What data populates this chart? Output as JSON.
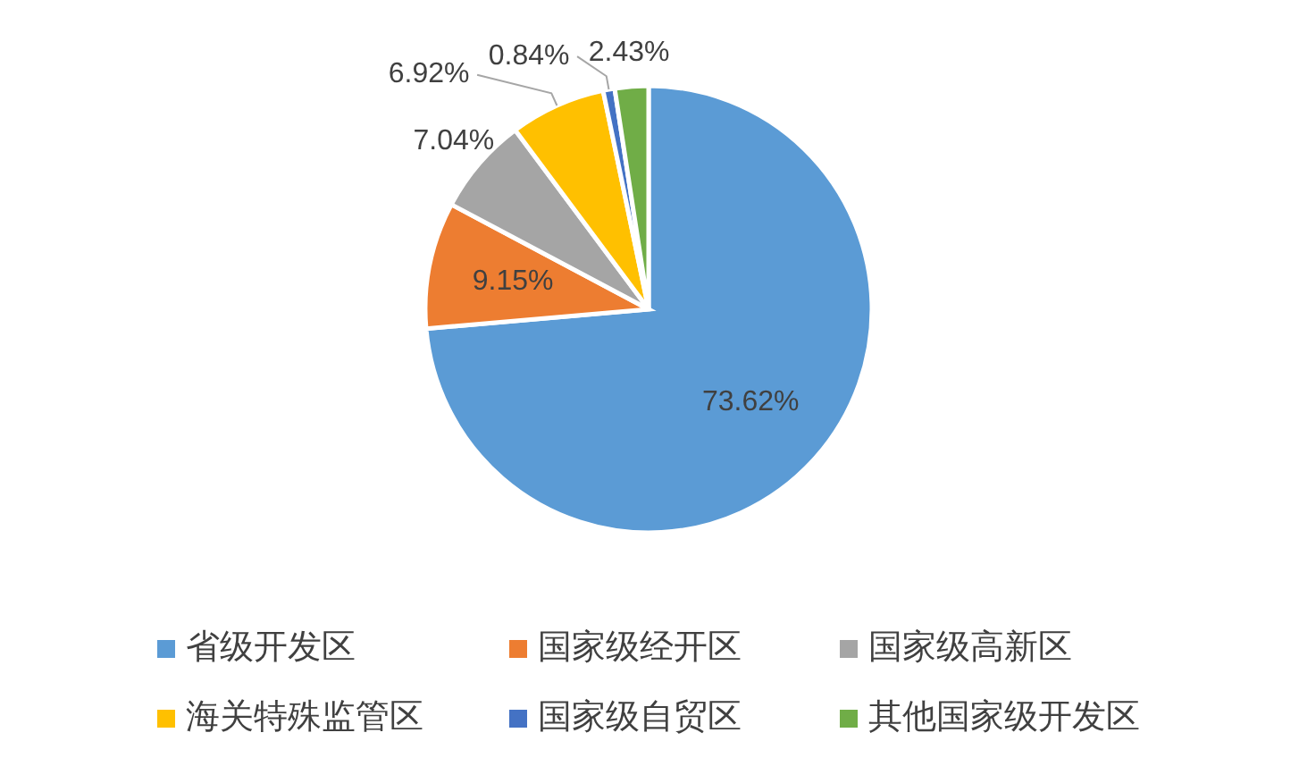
{
  "chart_data": {
    "type": "pie",
    "categories": [
      "省级开发区",
      "国家级经开区",
      "国家级高新区",
      "海关特殊监管区",
      "国家级自贸区",
      "其他国家级开发区"
    ],
    "values": [
      73.62,
      9.15,
      7.04,
      6.92,
      0.84,
      2.43
    ],
    "colors": [
      "#5b9bd5",
      "#ed7d31",
      "#a5a5a5",
      "#ffc000",
      "#4472c4",
      "#70ad47"
    ],
    "value_labels": [
      "73.62%",
      "9.15%",
      "7.04%",
      "6.92%",
      "0.84%",
      "2.43%"
    ],
    "legend": "bottom"
  }
}
